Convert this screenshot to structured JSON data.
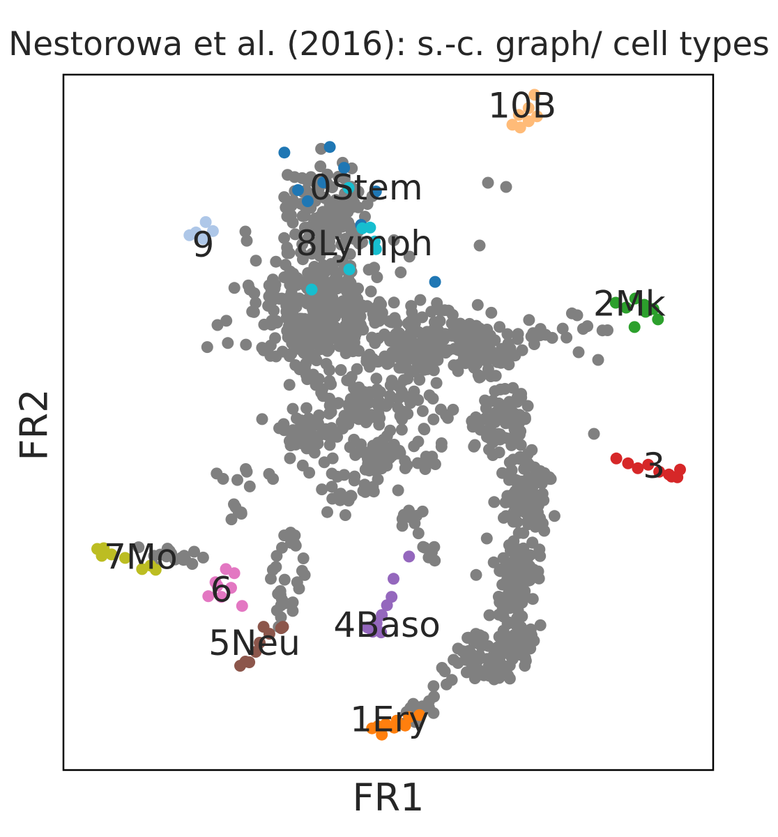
{
  "chart_data": {
    "type": "scatter",
    "title": "Nestorowa et al. (2016): s.-c. graph/ cell types",
    "xlabel": "FR1",
    "ylabel": "FR2",
    "xlim": [
      0,
      100
    ],
    "ylim": [
      0,
      100
    ],
    "ticks": "none",
    "grid": false,
    "legend": "on data",
    "background_color": "#808080",
    "clusters": [
      {
        "name": "0Stem",
        "color": "#1f77b4",
        "label_pos": [
          46.6,
          83.4
        ],
        "points": [
          [
            34.0,
            88.8
          ],
          [
            41.0,
            89.6
          ],
          [
            43.2,
            86.6
          ],
          [
            36.1,
            83.4
          ],
          [
            37.6,
            81.8
          ],
          [
            48.1,
            83.2
          ],
          [
            40.0,
            84.5
          ],
          [
            45.8,
            78.4
          ],
          [
            57.2,
            70.2
          ]
        ]
      },
      {
        "name": "1Ery",
        "color": "#ff7f0e",
        "label_pos": [
          50.2,
          6.9
        ],
        "points": [
          [
            47.5,
            6.0
          ],
          [
            48.4,
            6.3
          ],
          [
            49.6,
            6.6
          ],
          [
            51.3,
            7.1
          ],
          [
            53.2,
            7.6
          ],
          [
            54.8,
            7.9
          ],
          [
            49.0,
            5.1
          ],
          [
            50.9,
            6.1
          ],
          [
            52.6,
            6.4
          ]
        ]
      },
      {
        "name": "2Mk",
        "color": "#2ca02c",
        "label_pos": [
          87.1,
          66.7
        ],
        "points": [
          [
            85.0,
            67.2
          ],
          [
            86.6,
            66.5
          ],
          [
            88.0,
            67.8
          ],
          [
            89.4,
            66.9
          ],
          [
            90.8,
            66.3
          ],
          [
            91.5,
            64.8
          ],
          [
            87.9,
            63.7
          ],
          [
            89.6,
            65.9
          ]
        ]
      },
      {
        "name": "3",
        "color": "#d62728",
        "label_pos": [
          90.9,
          43.4
        ],
        "points": [
          [
            85.1,
            44.8
          ],
          [
            86.9,
            44.1
          ],
          [
            88.4,
            43.4
          ],
          [
            90.0,
            43.9
          ],
          [
            91.7,
            42.9
          ],
          [
            93.2,
            42.5
          ],
          [
            94.5,
            42.1
          ],
          [
            94.9,
            43.2
          ],
          [
            93.6,
            42.2
          ]
        ]
      },
      {
        "name": "4Baso",
        "color": "#9467bd",
        "label_pos": [
          49.8,
          20.5
        ],
        "points": [
          [
            53.2,
            30.7
          ],
          [
            50.8,
            27.5
          ],
          [
            50.5,
            24.9
          ],
          [
            49.8,
            23.7
          ],
          [
            49.0,
            22.3
          ],
          [
            48.2,
            21.1
          ],
          [
            48.9,
            19.8
          ],
          [
            46.8,
            20.5
          ],
          [
            47.6,
            19.9
          ]
        ]
      },
      {
        "name": "5Neu",
        "color": "#8c564b",
        "label_pos": [
          29.4,
          17.9
        ],
        "points": [
          [
            33.8,
            20.6
          ],
          [
            30.8,
            20.6
          ],
          [
            31.7,
            19.6
          ],
          [
            30.2,
            18.3
          ],
          [
            29.6,
            17.0
          ],
          [
            28.6,
            15.5
          ],
          [
            27.2,
            15.0
          ],
          [
            28.0,
            15.6
          ],
          [
            33.5,
            20.4
          ]
        ]
      },
      {
        "name": "6",
        "color": "#e377c2",
        "label_pos": [
          24.3,
          25.6
        ],
        "points": [
          [
            25.0,
            28.9
          ],
          [
            26.3,
            28.3
          ],
          [
            23.4,
            27.0
          ],
          [
            25.8,
            26.2
          ],
          [
            22.3,
            25.0
          ],
          [
            24.3,
            24.9
          ],
          [
            27.5,
            23.6
          ],
          [
            23.7,
            26.5
          ]
        ]
      },
      {
        "name": "7Mo",
        "color": "#bcbd22",
        "label_pos": [
          11.9,
          30.3
        ],
        "points": [
          [
            5.2,
            31.8
          ],
          [
            5.9,
            30.8
          ],
          [
            7.4,
            31.0
          ],
          [
            9.5,
            30.5
          ],
          [
            12.1,
            28.9
          ],
          [
            13.4,
            29.4
          ],
          [
            14.2,
            28.8
          ],
          [
            6.2,
            31.9
          ]
        ]
      },
      {
        "name": "8Lymph",
        "color": "#17becf",
        "label_pos": [
          46.3,
          75.4
        ],
        "points": [
          [
            43.9,
            83.7
          ],
          [
            47.2,
            78.0
          ],
          [
            47.9,
            76.0
          ],
          [
            48.1,
            74.9
          ],
          [
            44.0,
            72.0
          ],
          [
            38.2,
            69.1
          ],
          [
            46.0,
            77.9
          ]
        ]
      },
      {
        "name": "9",
        "color": "#aec7e8",
        "label_pos": [
          21.5,
          75.2
        ],
        "points": [
          [
            21.9,
            78.8
          ],
          [
            20.4,
            77.3
          ],
          [
            21.5,
            76.4
          ],
          [
            23.0,
            77.5
          ],
          [
            19.4,
            76.9
          ]
        ]
      },
      {
        "name": "10B",
        "color": "#ffbb78",
        "label_pos": [
          70.6,
          95.2
        ],
        "points": [
          [
            72.5,
            97.1
          ],
          [
            71.6,
            95.2
          ],
          [
            70.1,
            94.2
          ],
          [
            69.1,
            92.8
          ],
          [
            70.3,
            92.4
          ],
          [
            71.6,
            93.3
          ],
          [
            72.9,
            94.0
          ]
        ]
      }
    ]
  }
}
